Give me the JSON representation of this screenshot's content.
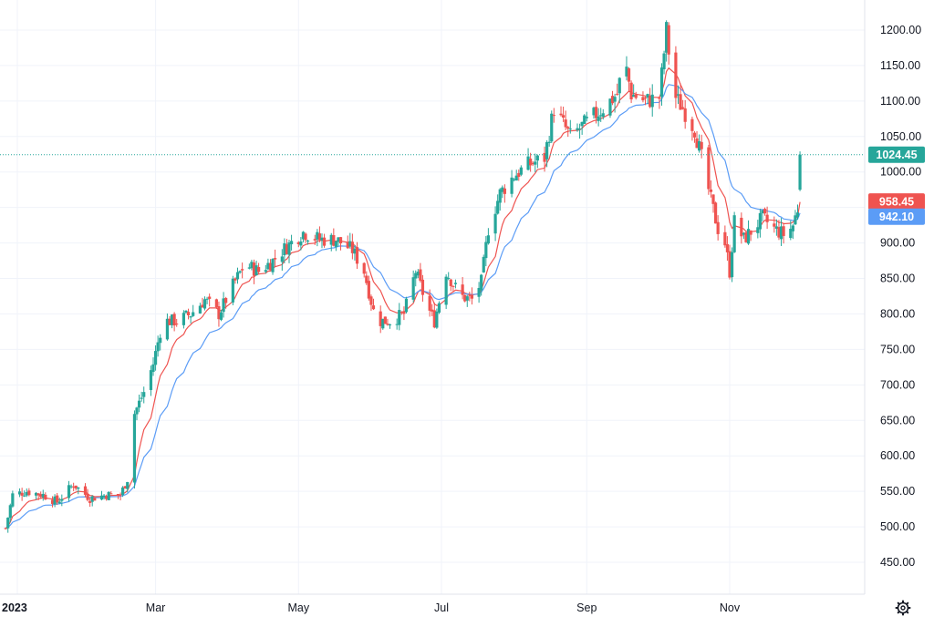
{
  "chart_data": {
    "type": "candlestick",
    "y_axis": {
      "min": 420,
      "max": 1220,
      "ticks": [
        450,
        500,
        550,
        600,
        650,
        700,
        750,
        800,
        850,
        900,
        950,
        1000,
        1050,
        1100,
        1150,
        1200
      ],
      "position": "right"
    },
    "x_axis": {
      "labels": [
        {
          "text": "2023",
          "date": "2023-01-01"
        },
        {
          "text": "Mar",
          "date": "2023-03-01"
        },
        {
          "text": "May",
          "date": "2023-05-01"
        },
        {
          "text": "Jul",
          "date": "2023-07-01"
        },
        {
          "text": "Sep",
          "date": "2023-09-01"
        },
        {
          "text": "Nov",
          "date": "2023-11-01"
        }
      ]
    },
    "grid": true,
    "last_price": {
      "value": 1024.45,
      "label": "1024.45",
      "color": "#26a69a"
    },
    "moving_averages": [
      {
        "color": "#ef5350",
        "last_value": 958.45,
        "label": "958.45"
      },
      {
        "color": "#5b9cf6",
        "last_value": 942.1,
        "label": "942.10"
      }
    ],
    "colors": {
      "up": "#26a69a",
      "down": "#ef5350"
    },
    "price_path": [
      [
        "2022-12-27",
        498
      ],
      [
        "2022-12-30",
        545
      ],
      [
        "2023-01-05",
        550
      ],
      [
        "2023-01-12",
        545
      ],
      [
        "2023-01-18",
        535
      ],
      [
        "2023-01-25",
        560
      ],
      [
        "2023-02-01",
        540
      ],
      [
        "2023-02-08",
        545
      ],
      [
        "2023-02-14",
        545
      ],
      [
        "2023-02-18",
        575
      ],
      [
        "2023-02-20",
        660
      ],
      [
        "2023-02-24",
        690
      ],
      [
        "2023-02-28",
        730
      ],
      [
        "2023-03-04",
        790
      ],
      [
        "2023-03-10",
        790
      ],
      [
        "2023-03-16",
        800
      ],
      [
        "2023-03-22",
        820
      ],
      [
        "2023-03-28",
        800
      ],
      [
        "2023-04-03",
        840
      ],
      [
        "2023-04-08",
        870
      ],
      [
        "2023-04-14",
        860
      ],
      [
        "2023-04-20",
        875
      ],
      [
        "2023-04-26",
        895
      ],
      [
        "2023-05-03",
        915
      ],
      [
        "2023-05-10",
        905
      ],
      [
        "2023-05-17",
        905
      ],
      [
        "2023-05-24",
        890
      ],
      [
        "2023-05-29",
        860
      ],
      [
        "2023-06-03",
        790
      ],
      [
        "2023-06-09",
        790
      ],
      [
        "2023-06-15",
        800
      ],
      [
        "2023-06-20",
        860
      ],
      [
        "2023-06-25",
        810
      ],
      [
        "2023-06-28",
        790
      ],
      [
        "2023-07-03",
        860
      ],
      [
        "2023-07-09",
        825
      ],
      [
        "2023-07-14",
        820
      ],
      [
        "2023-07-18",
        845
      ],
      [
        "2023-07-21",
        920
      ],
      [
        "2023-07-26",
        970
      ],
      [
        "2023-08-01",
        995
      ],
      [
        "2023-08-07",
        1010
      ],
      [
        "2023-08-14",
        1020
      ],
      [
        "2023-08-18",
        1090
      ],
      [
        "2023-08-25",
        1050
      ],
      [
        "2023-09-01",
        1070
      ],
      [
        "2023-09-08",
        1090
      ],
      [
        "2023-09-14",
        1110
      ],
      [
        "2023-09-17",
        1160
      ],
      [
        "2023-09-20",
        1110
      ],
      [
        "2023-09-26",
        1100
      ],
      [
        "2023-10-02",
        1105
      ],
      [
        "2023-10-05",
        1200
      ],
      [
        "2023-10-08",
        1110
      ],
      [
        "2023-10-12",
        1090
      ],
      [
        "2023-10-17",
        1060
      ],
      [
        "2023-10-20",
        1020
      ],
      [
        "2023-10-24",
        960
      ],
      [
        "2023-10-27",
        920
      ],
      [
        "2023-10-30",
        900
      ],
      [
        "2023-11-01",
        860
      ],
      [
        "2023-11-03",
        930
      ],
      [
        "2023-11-07",
        905
      ],
      [
        "2023-11-11",
        920
      ],
      [
        "2023-11-15",
        935
      ],
      [
        "2023-11-20",
        920
      ],
      [
        "2023-11-25",
        910
      ],
      [
        "2023-11-28",
        925
      ],
      [
        "2023-12-01",
        960
      ],
      [
        "2023-12-03",
        1024.45
      ]
    ]
  }
}
